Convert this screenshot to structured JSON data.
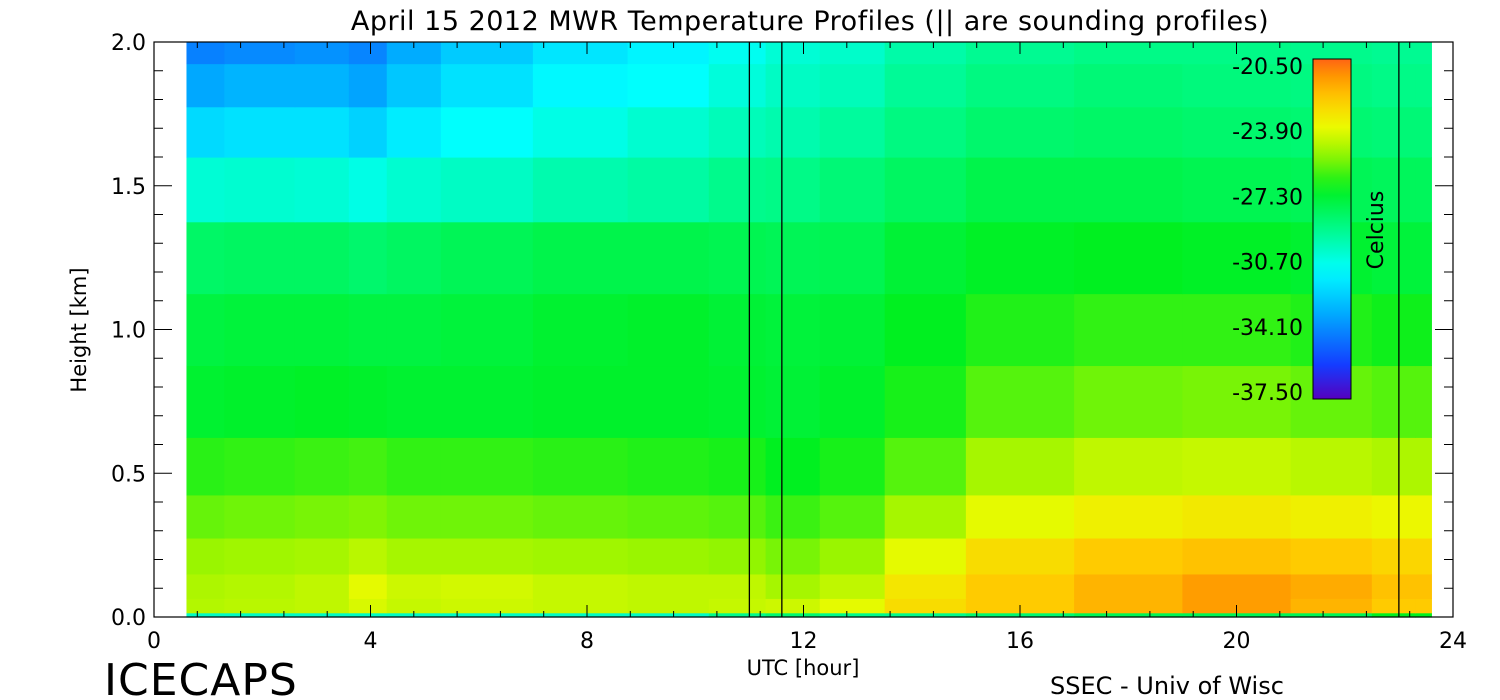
{
  "chart_data": {
    "type": "heatmap",
    "title": "April 15 2012 MWR Temperature Profiles (|| are sounding profiles)",
    "xlabel": "UTC [hour]",
    "ylabel": "Height [km]",
    "xlim": [
      0,
      24
    ],
    "ylim": [
      0,
      2.0
    ],
    "x_ticks": [
      "0",
      "4",
      "8",
      "12",
      "16",
      "20",
      "24"
    ],
    "y_ticks": [
      "0.0",
      "0.5",
      "1.0",
      "1.5",
      "2.0"
    ],
    "data_x_range": [
      0.6,
      23.6
    ],
    "sounding_times_utc": [
      11.0,
      11.6,
      23.0
    ],
    "colorbar": {
      "label": "Celcius",
      "ticks": [
        "-20.50",
        "-23.90",
        "-27.30",
        "-30.70",
        "-34.10",
        "-37.50"
      ],
      "range": [
        -37.5,
        -20.5
      ]
    },
    "grid": {
      "x": [
        0.6,
        2,
        3.2,
        4,
        4.6,
        6,
        8,
        9.5,
        11.0,
        11.6,
        13,
        14,
        16,
        18,
        20,
        22,
        23.0,
        23.6
      ],
      "y": [
        0.0,
        0.03,
        0.1,
        0.2,
        0.35,
        0.5,
        0.75,
        1.0,
        1.25,
        1.5,
        1.7,
        1.85,
        2.0
      ],
      "temperature_c": [
        [
          -30.0,
          -30.0,
          -30.0,
          -30.0,
          -30.0,
          -30.0,
          -30.0,
          -30.0,
          -29.0,
          -28.5,
          -29.0,
          -29.0,
          -28.5,
          -28.0,
          -28.0,
          -28.0,
          -27.0,
          -27.0
        ],
        [
          -24.8,
          -24.7,
          -24.6,
          -24.2,
          -24.5,
          -24.4,
          -24.5,
          -24.6,
          -24.5,
          -24.4,
          -24.0,
          -23.0,
          -22.5,
          -22.0,
          -21.5,
          -22.0,
          -22.5,
          -22.5
        ],
        [
          -24.9,
          -24.8,
          -24.6,
          -24.0,
          -24.4,
          -24.3,
          -24.5,
          -24.6,
          -24.6,
          -25.0,
          -24.6,
          -23.3,
          -22.5,
          -22.0,
          -21.5,
          -21.8,
          -22.3,
          -22.3
        ],
        [
          -25.2,
          -25.1,
          -25.0,
          -24.7,
          -25.0,
          -25.0,
          -25.1,
          -25.2,
          -25.3,
          -25.6,
          -25.2,
          -24.0,
          -23.0,
          -22.5,
          -22.3,
          -22.5,
          -22.8,
          -22.8
        ],
        [
          -25.8,
          -25.7,
          -25.6,
          -25.5,
          -25.7,
          -25.7,
          -25.8,
          -25.9,
          -26.0,
          -26.3,
          -26.0,
          -25.0,
          -24.0,
          -23.6,
          -23.4,
          -23.6,
          -23.8,
          -23.8
        ],
        [
          -26.5,
          -26.4,
          -26.3,
          -26.2,
          -26.4,
          -26.4,
          -26.5,
          -26.6,
          -26.7,
          -27.0,
          -26.7,
          -26.0,
          -25.0,
          -24.6,
          -24.5,
          -24.7,
          -24.9,
          -24.9
        ],
        [
          -27.3,
          -27.2,
          -27.1,
          -27.2,
          -27.3,
          -27.3,
          -27.2,
          -27.2,
          -27.3,
          -27.4,
          -27.2,
          -26.7,
          -26.0,
          -25.7,
          -25.6,
          -25.8,
          -26.0,
          -26.0
        ],
        [
          -27.6,
          -27.5,
          -27.5,
          -27.6,
          -27.6,
          -27.5,
          -27.3,
          -27.2,
          -27.4,
          -27.5,
          -27.4,
          -27.0,
          -26.6,
          -26.4,
          -26.4,
          -26.6,
          -26.8,
          -26.8
        ],
        [
          -28.3,
          -28.2,
          -28.2,
          -28.4,
          -28.2,
          -28.0,
          -27.8,
          -27.8,
          -27.9,
          -28.0,
          -27.9,
          -27.4,
          -27.1,
          -27.0,
          -27.1,
          -27.3,
          -27.5,
          -27.5
        ],
        [
          -30.3,
          -30.2,
          -30.3,
          -30.6,
          -30.2,
          -30.0,
          -29.6,
          -29.4,
          -29.0,
          -28.9,
          -28.6,
          -28.2,
          -27.8,
          -27.8,
          -27.9,
          -28.0,
          -28.1,
          -28.1
        ],
        [
          -32.0,
          -31.8,
          -31.8,
          -32.2,
          -31.5,
          -31.0,
          -30.6,
          -30.2,
          -29.8,
          -29.6,
          -29.3,
          -28.8,
          -28.4,
          -28.3,
          -28.4,
          -28.5,
          -28.6,
          -28.6
        ],
        [
          -33.3,
          -33.0,
          -33.0,
          -33.4,
          -32.5,
          -31.8,
          -31.2,
          -31.0,
          -30.4,
          -30.0,
          -29.8,
          -29.2,
          -28.8,
          -28.6,
          -28.7,
          -28.8,
          -28.9,
          -28.9
        ],
        [
          -34.2,
          -34.0,
          -33.8,
          -34.1,
          -33.2,
          -32.4,
          -31.7,
          -31.3,
          -30.8,
          -30.3,
          -30.1,
          -29.5,
          -29.1,
          -28.9,
          -28.9,
          -29.0,
          -29.1,
          -29.1
        ]
      ]
    }
  },
  "labels": {
    "brand": "ICECAPS",
    "credit": "SSEC - Univ of Wisc"
  }
}
